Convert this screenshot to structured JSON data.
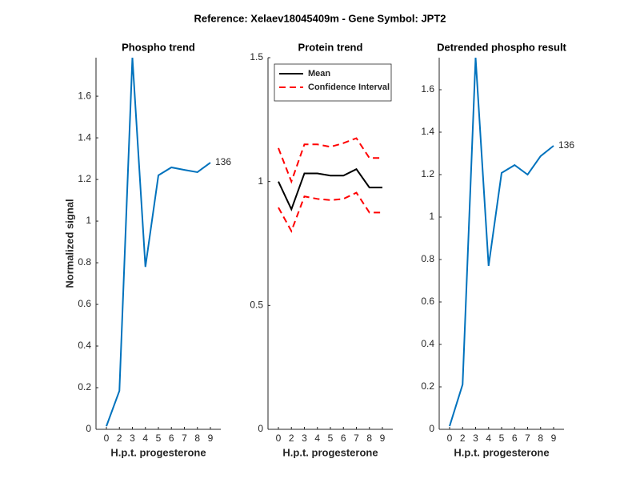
{
  "title": "Reference:  Xelaev18045409m - Gene Symbol:  JPT2",
  "chart_data": [
    {
      "type": "line",
      "title": "Phospho trend",
      "xlabel": "H.p.t. progesterone",
      "ylabel": "Normalized signal",
      "categories": [
        0,
        2,
        3,
        4,
        5,
        6,
        7,
        8,
        9
      ],
      "series": [
        {
          "color": "#0072bd",
          "values": [
            0.015,
            0.185,
            1.785,
            0.78,
            1.22,
            1.258,
            1.246,
            1.235,
            1.281
          ]
        }
      ],
      "annotation": "136",
      "ylim": [
        0,
        1.785
      ],
      "yticks": [
        0,
        0.2,
        0.4,
        0.6,
        0.8,
        1,
        1.2,
        1.4,
        1.6
      ]
    },
    {
      "type": "band-line",
      "title": "Protein trend",
      "xlabel": "H.p.t. progesterone",
      "categories": [
        0,
        2,
        3,
        4,
        5,
        6,
        7,
        8,
        9
      ],
      "series": [
        {
          "name": "Mean",
          "color": "#000000",
          "values": [
            1.0,
            0.888,
            1.033,
            1.033,
            1.024,
            1.024,
            1.05,
            0.976,
            0.976
          ]
        },
        {
          "name": "Confidence Interval",
          "color": "#ff0000",
          "dashed": true,
          "upper": [
            1.135,
            1.0,
            1.15,
            1.15,
            1.14,
            1.155,
            1.175,
            1.095,
            1.095
          ],
          "lower": [
            0.895,
            0.8,
            0.94,
            0.93,
            0.925,
            0.93,
            0.955,
            0.875,
            0.875
          ]
        }
      ],
      "legend": "upper right",
      "ylim": [
        0,
        1.5
      ],
      "yticks": [
        0,
        0.5,
        1,
        1.5
      ]
    },
    {
      "type": "line",
      "title": "Detrended phospho result",
      "xlabel": "H.p.t. progesterone",
      "categories": [
        0,
        2,
        3,
        4,
        5,
        6,
        7,
        8,
        9
      ],
      "series": [
        {
          "color": "#0072bd",
          "values": [
            0.015,
            0.211,
            1.751,
            0.77,
            1.208,
            1.245,
            1.2,
            1.287,
            1.336
          ]
        }
      ],
      "annotation": "136",
      "ylim": [
        0,
        1.751
      ],
      "yticks": [
        0,
        0.2,
        0.4,
        0.6,
        0.8,
        1,
        1.2,
        1.4,
        1.6
      ]
    }
  ]
}
